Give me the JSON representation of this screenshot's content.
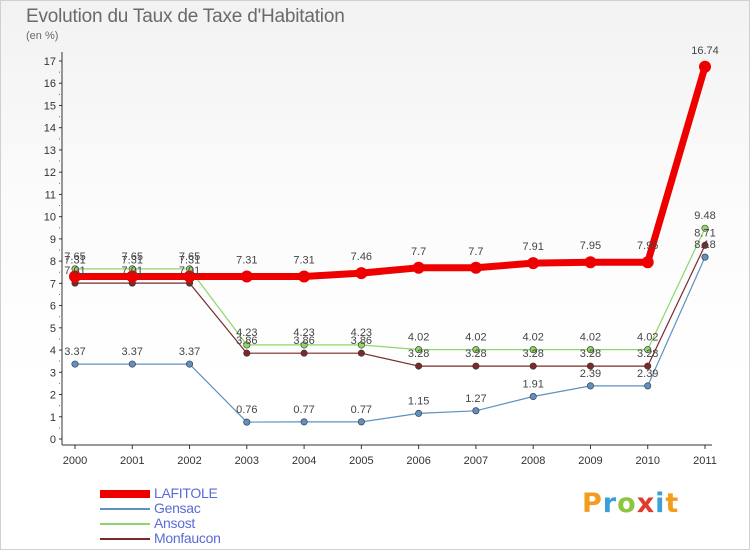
{
  "title": "Evolution du Taux de Taxe d'Habitation",
  "unit": "(en %)",
  "logo": "Proxiti",
  "chart_data": {
    "type": "line",
    "title": "Evolution du Taux de Taxe d'Habitation",
    "ylabel": "(en %)",
    "xlabel": "",
    "x": [
      "2000",
      "2001",
      "2002",
      "2003",
      "2004",
      "2005",
      "2006",
      "2007",
      "2008",
      "2009",
      "2010",
      "2011"
    ],
    "ylim": [
      0,
      17
    ],
    "yticks": [
      0,
      1,
      2,
      3,
      4,
      5,
      6,
      7,
      8,
      9,
      10,
      11,
      12,
      13,
      14,
      15,
      16,
      17
    ],
    "grid": false,
    "legend_position": "bottom-left",
    "series": [
      {
        "name": "Monfaucon",
        "color": "#7a2a2a",
        "width": 1.2,
        "values": [
          7.01,
          7.01,
          7.01,
          3.86,
          3.86,
          3.86,
          3.28,
          3.28,
          3.28,
          3.28,
          3.28,
          8.71
        ],
        "labels": [
          "7.01",
          "7.01",
          "7.01",
          "3.86",
          "3.86",
          "3.86",
          "3.28",
          "3.28",
          "3.28",
          "3.28",
          "3.28",
          "8.71"
        ]
      },
      {
        "name": "Ansost",
        "color": "#8fd66a",
        "width": 1.2,
        "values": [
          7.65,
          7.65,
          7.65,
          4.23,
          4.23,
          4.23,
          4.02,
          4.02,
          4.02,
          4.02,
          4.02,
          9.48
        ],
        "labels": [
          "7.65",
          "7.65",
          "7.65",
          "4.23",
          "4.23",
          "4.23",
          "4.02",
          "4.02",
          "4.02",
          "4.02",
          "4.02",
          "9.48"
        ]
      },
      {
        "name": "Gensac",
        "color": "#5e91bf",
        "width": 1.2,
        "values": [
          3.37,
          3.37,
          3.37,
          0.76,
          0.77,
          0.77,
          1.15,
          1.27,
          1.91,
          2.39,
          2.39,
          8.18
        ],
        "labels": [
          "3.37",
          "3.37",
          "3.37",
          "0.76",
          "0.77",
          "0.77",
          "1.15",
          "1.27",
          "1.91",
          "2.39",
          "2.39",
          "8.18"
        ]
      },
      {
        "name": "LAFITOLE",
        "color": "#ee0000",
        "width": 7,
        "values": [
          7.31,
          7.31,
          7.31,
          7.31,
          7.31,
          7.46,
          7.7,
          7.7,
          7.91,
          7.95,
          7.95,
          16.74
        ],
        "labels": [
          "7.31",
          "7.31",
          "7.31",
          "7.31",
          "7.31",
          "7.46",
          "7.7",
          "7.7",
          "7.91",
          "7.95",
          "7.95",
          "16.74"
        ]
      }
    ],
    "legend": [
      "LAFITOLE",
      "Gensac",
      "Ansost",
      "Monfaucon"
    ]
  }
}
